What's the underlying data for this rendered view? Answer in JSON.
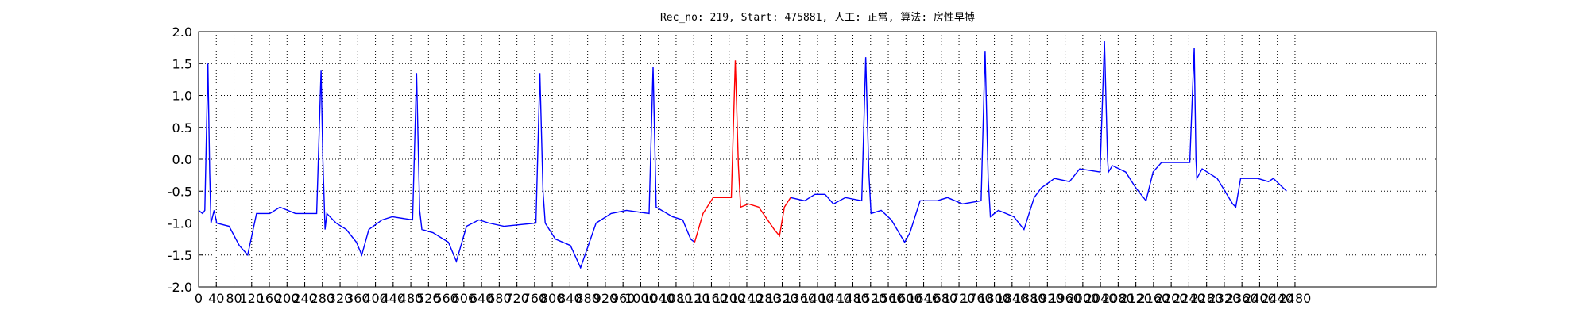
{
  "chart_data": {
    "type": "line",
    "title": "Rec_no: 219, Start: 475881, 人工: 正常, 算法: 房性早搏",
    "x": [
      0,
      9,
      14,
      21,
      25,
      28,
      35,
      41,
      69,
      92,
      111,
      131,
      161,
      184,
      219,
      267,
      277,
      281,
      286,
      290,
      311,
      334,
      357,
      369,
      385,
      415,
      438,
      484,
      493,
      500,
      505,
      530,
      565,
      583,
      606,
      634,
      657,
      691,
      763,
      772,
      779,
      784,
      807,
      841,
      864,
      899,
      933,
      968,
      1019,
      1028,
      1035,
      1072,
      1095,
      1113,
      1122,
      1141,
      1164,
      1205,
      1214,
      1221,
      1226,
      1244,
      1267,
      1302,
      1314,
      1325,
      1339,
      1371,
      1394,
      1417,
      1436,
      1463,
      1500,
      1509,
      1516,
      1521,
      1544,
      1567,
      1597,
      1609,
      1632,
      1671,
      1694,
      1728,
      1770,
      1779,
      1786,
      1791,
      1809,
      1844,
      1867,
      1890,
      1906,
      1936,
      1970,
      1993,
      2039,
      2049,
      2056,
      2058,
      2067,
      2097,
      2120,
      2143,
      2159,
      2178,
      2242,
      2252,
      2256,
      2258,
      2270,
      2304,
      2339,
      2346,
      2357,
      2396,
      2420,
      2431,
      2461
    ],
    "series": [
      {
        "color": "#0000ff",
        "values": [
          -0.8,
          -0.85,
          -0.8,
          1.5,
          -0.2,
          -1.0,
          -0.8,
          -1.0,
          -1.05,
          -1.35,
          -1.5,
          -0.85,
          -0.85,
          -0.75,
          -0.85,
          -0.85,
          1.4,
          0.0,
          -1.1,
          -0.85,
          -1.0,
          -1.1,
          -1.3,
          -1.5,
          -1.1,
          -0.95,
          -0.9,
          -0.95,
          1.35,
          -0.8,
          -1.1,
          -1.15,
          -1.3,
          -1.6,
          -1.05,
          -0.95,
          -1.0,
          -1.05,
          -1.0,
          1.35,
          -0.5,
          -1.0,
          -1.25,
          -1.35,
          -1.7,
          -1.0,
          -0.85,
          -0.8,
          -0.85,
          1.45,
          -0.75,
          -0.9,
          -0.95,
          -1.25,
          -1.3,
          null,
          null,
          null,
          null,
          null,
          null,
          null,
          null,
          null,
          null,
          null,
          -0.6,
          -0.65,
          -0.55,
          -0.55,
          -0.7,
          -0.6,
          -0.65,
          1.6,
          -0.2,
          -0.85,
          -0.8,
          -0.95,
          -1.3,
          -1.15,
          -0.65,
          -0.65,
          -0.6,
          -0.7,
          -0.65,
          1.7,
          -0.3,
          -0.9,
          -0.8,
          -0.9,
          -1.1,
          -0.6,
          -0.45,
          -0.3,
          -0.35,
          -0.15,
          -0.2,
          1.85,
          0.0,
          -0.2,
          -0.1,
          -0.2,
          -0.45,
          -0.65,
          -0.2,
          -0.05,
          -0.05,
          1.75,
          0.0,
          -0.3,
          -0.15,
          -0.3,
          -0.7,
          -0.75,
          -0.3,
          -0.3,
          -0.35,
          -0.3,
          -0.5
        ]
      },
      {
        "color": "#ff0000",
        "values": [
          null,
          null,
          null,
          null,
          null,
          null,
          null,
          null,
          null,
          null,
          null,
          null,
          null,
          null,
          null,
          null,
          null,
          null,
          null,
          null,
          null,
          null,
          null,
          null,
          null,
          null,
          null,
          null,
          null,
          null,
          null,
          null,
          null,
          null,
          null,
          null,
          null,
          null,
          null,
          null,
          null,
          null,
          null,
          null,
          null,
          null,
          null,
          null,
          null,
          null,
          null,
          null,
          null,
          null,
          -1.3,
          -0.85,
          -0.6,
          -0.6,
          1.55,
          -0.1,
          -0.75,
          -0.7,
          -0.75,
          -1.1,
          -1.2,
          -0.75,
          -0.6,
          null,
          null,
          null,
          null,
          null,
          null,
          null,
          null,
          null,
          null,
          null,
          null,
          null,
          null,
          null,
          null,
          null,
          null,
          null,
          null,
          null,
          null,
          null,
          null,
          null,
          null,
          null,
          null,
          null,
          null,
          null,
          null,
          null,
          null,
          null,
          null,
          null,
          null,
          null,
          null,
          null,
          null,
          null,
          null,
          null,
          null,
          null,
          null,
          null,
          null,
          null,
          null
        ]
      }
    ],
    "xlim": [
      0,
      2800
    ],
    "xticks": [
      0,
      40,
      80,
      120,
      160,
      200,
      240,
      280,
      320,
      360,
      400,
      440,
      480,
      520,
      560,
      600,
      640,
      680,
      720,
      760,
      800,
      840,
      880,
      920,
      960,
      1000,
      1040,
      1080,
      1120,
      1160,
      1200,
      1240,
      1280,
      1320,
      1360,
      1400,
      1440,
      1480,
      1520,
      1560,
      1600,
      1640,
      1680,
      1720,
      1760,
      1800,
      1840,
      1880,
      1920,
      1960,
      2000,
      2040,
      2080,
      2120,
      2160,
      2200,
      2240,
      2280,
      2320,
      2360,
      2400,
      2440,
      2480
    ],
    "ylim": [
      -2,
      2
    ],
    "yticks": [
      {
        "value": -2,
        "label": "-2.0"
      },
      -1.5,
      {
        "value": -1,
        "label": "-1.0"
      },
      -0.5,
      {
        "value": 0,
        "label": "0.0"
      },
      0.5,
      {
        "value": 1,
        "label": "1.0"
      },
      1.5,
      {
        "value": 2,
        "label": "2.0"
      }
    ],
    "grid": true
  }
}
